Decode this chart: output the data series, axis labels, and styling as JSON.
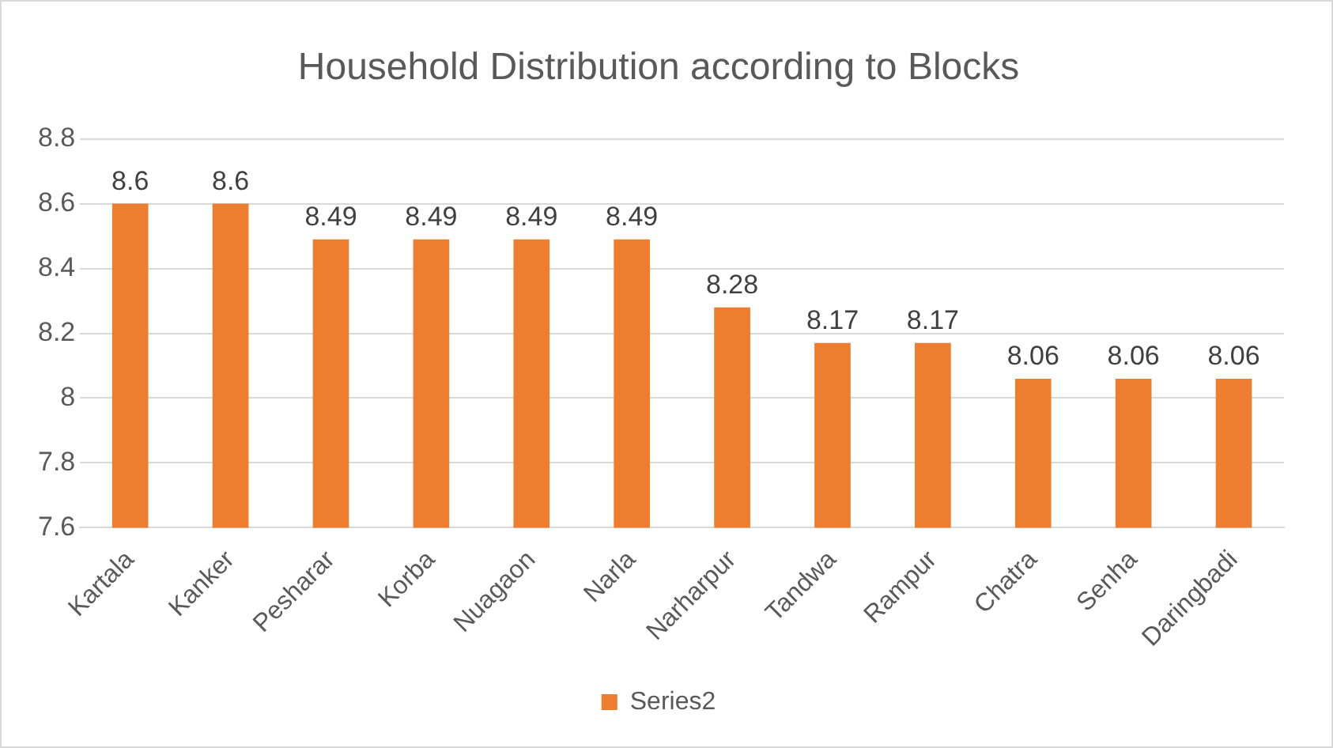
{
  "chart_data": {
    "type": "bar",
    "title": "Household Distribution according to Blocks",
    "categories": [
      "Kartala",
      "Kanker",
      "Pesharar",
      "Korba",
      "Nuagaon",
      "Narla",
      "Narharpur",
      "Tandwa",
      "Rampur",
      "Chatra",
      "Senha",
      "Daringbadi"
    ],
    "series": [
      {
        "name": "Series2",
        "color": "#ed7d31",
        "values": [
          8.6,
          8.6,
          8.49,
          8.49,
          8.49,
          8.49,
          8.28,
          8.17,
          8.17,
          8.06,
          8.06,
          8.06
        ]
      }
    ],
    "ylim": [
      7.6,
      8.8
    ],
    "yticks": [
      7.6,
      7.8,
      8,
      8.2,
      8.4,
      8.6,
      8.8
    ],
    "grid": "y",
    "legend": "bottom",
    "data_labels": true
  }
}
